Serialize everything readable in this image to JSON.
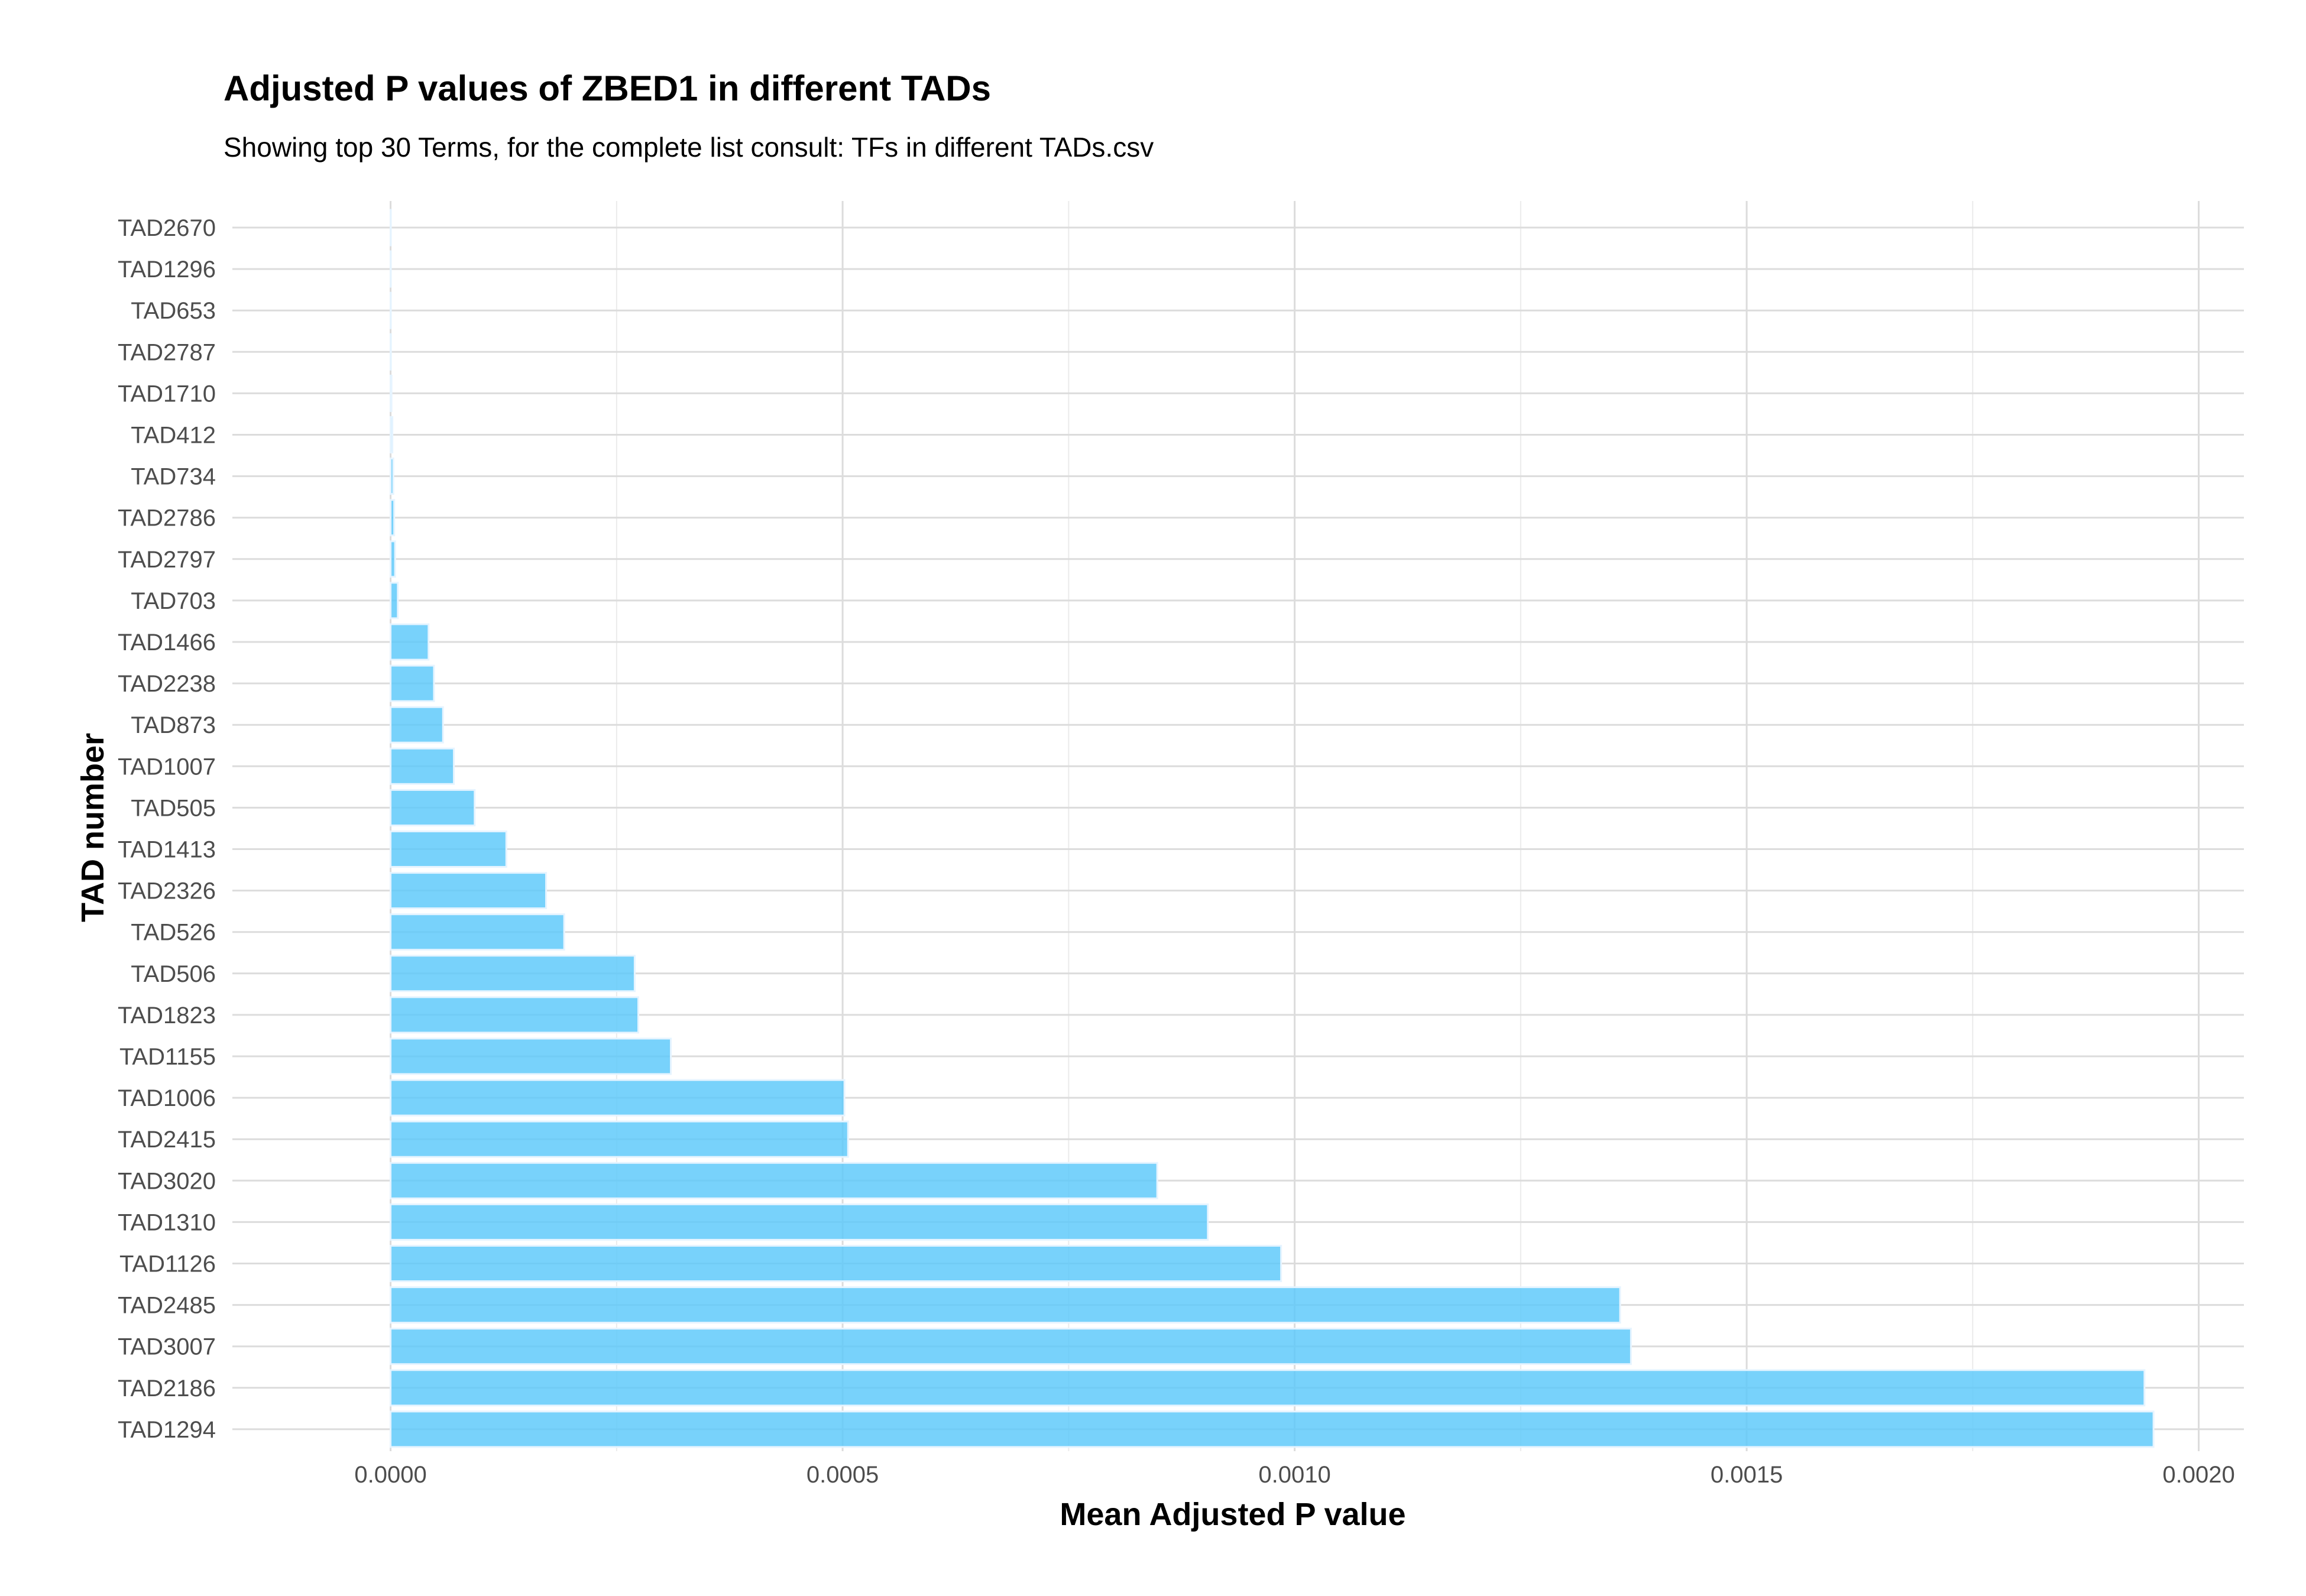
{
  "chart_data": {
    "type": "bar",
    "orientation": "horizontal",
    "title": "Adjusted P values of ZBED1 in different TADs",
    "subtitle": "Showing top 30 Terms, for the complete list consult: TFs in different TADs.csv",
    "xlabel": "Mean Adjusted P value",
    "ylabel": "TAD number",
    "xlim": [
      -0.000175,
      0.00205
    ],
    "x_ticks": [
      "0.0000",
      "0.0005",
      "0.0010",
      "0.0015",
      "0.0020"
    ],
    "x_tick_values": [
      0,
      0.0005,
      0.001,
      0.0015,
      0.002
    ],
    "grid": true,
    "bar_color": "#5ac8fa",
    "bar_edge_color": "#e6f4ff",
    "categories": [
      "TAD2670",
      "TAD1296",
      "TAD653",
      "TAD2787",
      "TAD1710",
      "TAD412",
      "TAD734",
      "TAD2786",
      "TAD2797",
      "TAD703",
      "TAD1466",
      "TAD2238",
      "TAD873",
      "TAD1007",
      "TAD505",
      "TAD1413",
      "TAD2326",
      "TAD526",
      "TAD506",
      "TAD1823",
      "TAD1155",
      "TAD1006",
      "TAD2415",
      "TAD3020",
      "TAD1310",
      "TAD1126",
      "TAD2485",
      "TAD3007",
      "TAD2186",
      "TAD1294"
    ],
    "values": [
      1e-07,
      2e-07,
      3e-07,
      4e-07,
      1e-06,
      2e-06,
      3e-06,
      4e-06,
      5e-06,
      8e-06,
      4.2e-05,
      4.8e-05,
      5.8e-05,
      7e-05,
      9.3e-05,
      0.000128,
      0.000172,
      0.000192,
      0.00027,
      0.000274,
      0.00031,
      0.000502,
      0.000506,
      0.000848,
      0.000904,
      0.000985,
      0.00136,
      0.001372,
      0.00194,
      0.00195
    ]
  }
}
